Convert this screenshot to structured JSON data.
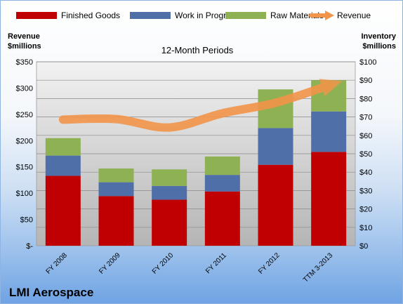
{
  "chart_data": {
    "type": "bar",
    "subtitle": "12-Month Periods",
    "categories": [
      "FY 2008",
      "FY 2009",
      "FY 2010",
      "FY 2011",
      "FY 2012",
      "TTM 3-2013"
    ],
    "stacked": true,
    "series": [
      {
        "name": "Finished Goods",
        "axis": "right",
        "color": "#c00000",
        "values": [
          38,
          27,
          25,
          29.5,
          44,
          51
        ]
      },
      {
        "name": "Work in Progress",
        "axis": "right",
        "color": "#4f6fa8",
        "values": [
          11,
          7.5,
          7.5,
          9,
          20,
          22
        ]
      },
      {
        "name": "Raw Materials",
        "axis": "right",
        "color": "#8db153",
        "values": [
          9.5,
          7.5,
          9,
          10,
          21,
          17
        ]
      },
      {
        "name": "Revenue",
        "axis": "left",
        "type": "line",
        "color": "#f2954a",
        "values": [
          240,
          241,
          225,
          252,
          272,
          305
        ]
      }
    ],
    "left_axis": {
      "title_line1": "Revenue",
      "title_line2": "$millions",
      "ylim": [
        0,
        350
      ],
      "ticks": [
        0,
        50,
        100,
        150,
        200,
        250,
        300,
        350
      ],
      "tick_labels": [
        "$-",
        "$50",
        "$100",
        "$150",
        "$200",
        "$250",
        "$300",
        "$350"
      ]
    },
    "right_axis": {
      "title_line1": "Inventory",
      "title_line2": "$millions",
      "ylim": [
        0,
        100
      ],
      "ticks": [
        0,
        10,
        20,
        30,
        40,
        50,
        60,
        70,
        80,
        90,
        100
      ],
      "tick_labels": [
        "$0",
        "$10",
        "$20",
        "$30",
        "$40",
        "$50",
        "$60",
        "$70",
        "$80",
        "$90",
        "$100"
      ]
    },
    "legend_position": "top",
    "grid": true
  },
  "brand": {
    "name": "LMI Aerospace"
  }
}
